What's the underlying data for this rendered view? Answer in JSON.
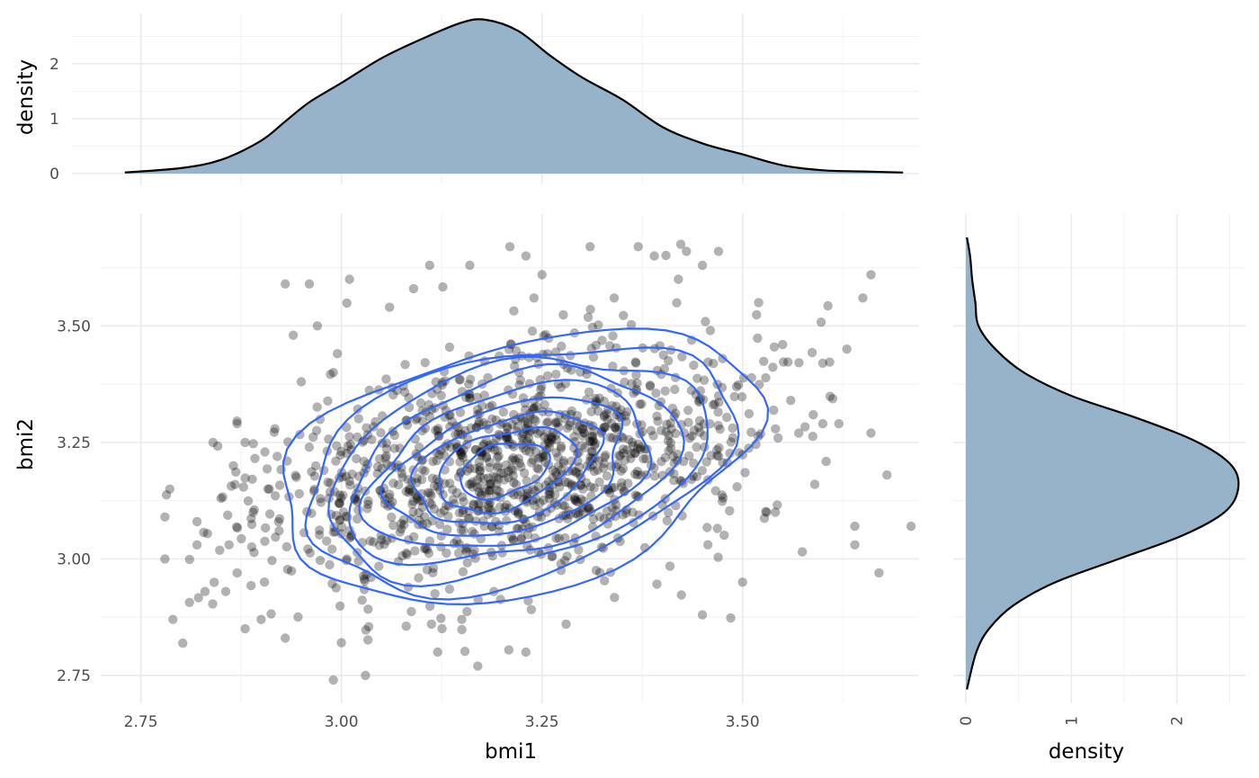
{
  "chart_data": [
    {
      "type": "scatter",
      "panel": "main",
      "xlabel": "bmi1",
      "ylabel": "bmi2",
      "xlim": [
        2.7,
        3.72
      ],
      "ylim": [
        2.69,
        3.74
      ],
      "x_ticks": [
        2.75,
        3.0,
        3.25,
        3.5
      ],
      "x_tick_labels": [
        "2.75",
        "3.00",
        "3.25",
        "3.50"
      ],
      "y_ticks": [
        2.75,
        3.0,
        3.25,
        3.5
      ],
      "y_tick_labels": [
        "2.75",
        "3.00",
        "3.25",
        "3.50"
      ],
      "grid": true,
      "point_color": "#000000",
      "point_opacity": 0.3,
      "contour_color": "#3366ff",
      "points_outliers": [
        [
          2.78,
          3.0
        ],
        [
          2.78,
          3.09
        ],
        [
          2.79,
          2.87
        ],
        [
          2.82,
          3.08
        ],
        [
          2.82,
          3.03
        ],
        [
          2.83,
          2.93
        ],
        [
          2.84,
          3.25
        ],
        [
          2.85,
          3.13
        ],
        [
          2.86,
          3.03
        ],
        [
          2.87,
          3.29
        ],
        [
          2.87,
          2.97
        ],
        [
          2.88,
          3.25
        ],
        [
          2.88,
          2.85
        ],
        [
          2.89,
          3.1
        ],
        [
          2.9,
          2.87
        ],
        [
          2.91,
          3.15
        ],
        [
          2.92,
          3.22
        ],
        [
          2.93,
          2.83
        ],
        [
          2.93,
          3.59
        ],
        [
          2.94,
          3.48
        ],
        [
          2.95,
          3.38
        ],
        [
          2.96,
          3.59
        ],
        [
          2.97,
          3.5
        ],
        [
          2.99,
          3.4
        ],
        [
          2.99,
          2.74
        ],
        [
          3.0,
          2.82
        ],
        [
          3.01,
          3.6
        ],
        [
          3.03,
          2.75
        ],
        [
          3.06,
          3.54
        ],
        [
          3.09,
          3.58
        ],
        [
          3.11,
          3.63
        ],
        [
          3.12,
          2.8
        ],
        [
          3.15,
          2.87
        ],
        [
          3.16,
          3.63
        ],
        [
          3.17,
          2.77
        ],
        [
          3.19,
          2.93
        ],
        [
          3.21,
          3.67
        ],
        [
          3.23,
          3.65
        ],
        [
          3.24,
          3.56
        ],
        [
          3.23,
          2.8
        ],
        [
          3.25,
          3.61
        ],
        [
          3.28,
          2.86
        ],
        [
          3.31,
          3.67
        ],
        [
          3.34,
          3.56
        ],
        [
          3.37,
          3.67
        ],
        [
          3.39,
          3.65
        ],
        [
          3.42,
          3.6
        ],
        [
          3.43,
          3.66
        ],
        [
          3.45,
          3.63
        ],
        [
          3.47,
          3.66
        ],
        [
          3.45,
          2.88
        ],
        [
          3.5,
          2.95
        ],
        [
          3.52,
          3.55
        ],
        [
          3.55,
          3.46
        ],
        [
          3.56,
          3.34
        ],
        [
          3.57,
          3.27
        ],
        [
          3.59,
          3.16
        ],
        [
          3.6,
          3.42
        ],
        [
          3.62,
          3.29
        ],
        [
          3.63,
          3.45
        ],
        [
          3.64,
          3.07
        ],
        [
          3.64,
          3.03
        ],
        [
          3.65,
          3.56
        ],
        [
          3.66,
          3.27
        ],
        [
          3.67,
          2.97
        ],
        [
          3.68,
          3.18
        ],
        [
          3.71,
          3.07
        ],
        [
          3.66,
          3.61
        ],
        [
          3.6,
          3.29
        ],
        [
          3.53,
          3.1
        ]
      ],
      "point_cloud": {
        "count": 1250,
        "center": [
          3.21,
          3.2
        ],
        "sd": [
          0.16,
          0.13
        ],
        "correlation": 0.35
      },
      "contour_levels": 9
    },
    {
      "type": "area",
      "panel": "top-marginal",
      "xlabel": "",
      "ylabel": "density",
      "ylim": [
        0,
        2.8
      ],
      "y_ticks": [
        0,
        1,
        2
      ],
      "y_tick_labels": [
        "0",
        "1",
        "2"
      ],
      "fill_color": "#95b1c9",
      "x": [
        2.73,
        2.8,
        2.85,
        2.9,
        2.93,
        2.96,
        3.0,
        3.05,
        3.1,
        3.15,
        3.18,
        3.22,
        3.26,
        3.3,
        3.35,
        3.4,
        3.45,
        3.5,
        3.55,
        3.6,
        3.65,
        3.7
      ],
      "density": [
        0.02,
        0.1,
        0.25,
        0.6,
        0.95,
        1.3,
        1.65,
        2.1,
        2.45,
        2.75,
        2.8,
        2.6,
        2.15,
        1.75,
        1.35,
        0.85,
        0.55,
        0.35,
        0.15,
        0.06,
        0.04,
        0.02
      ]
    },
    {
      "type": "area",
      "panel": "right-marginal",
      "xlabel": "density",
      "ylabel": "",
      "xlim": [
        0,
        2.65
      ],
      "x_ticks": [
        0,
        1,
        2
      ],
      "x_tick_labels": [
        "0",
        "1",
        "2"
      ],
      "fill_color": "#95b1c9",
      "y": [
        2.72,
        2.8,
        2.85,
        2.9,
        2.95,
        3.0,
        3.05,
        3.1,
        3.15,
        3.2,
        3.25,
        3.3,
        3.35,
        3.4,
        3.45,
        3.5,
        3.55,
        3.6,
        3.65,
        3.69
      ],
      "density": [
        0.01,
        0.1,
        0.22,
        0.45,
        0.85,
        1.45,
        2.05,
        2.45,
        2.58,
        2.52,
        2.2,
        1.65,
        1.0,
        0.55,
        0.28,
        0.12,
        0.09,
        0.06,
        0.04,
        0.01
      ]
    }
  ]
}
